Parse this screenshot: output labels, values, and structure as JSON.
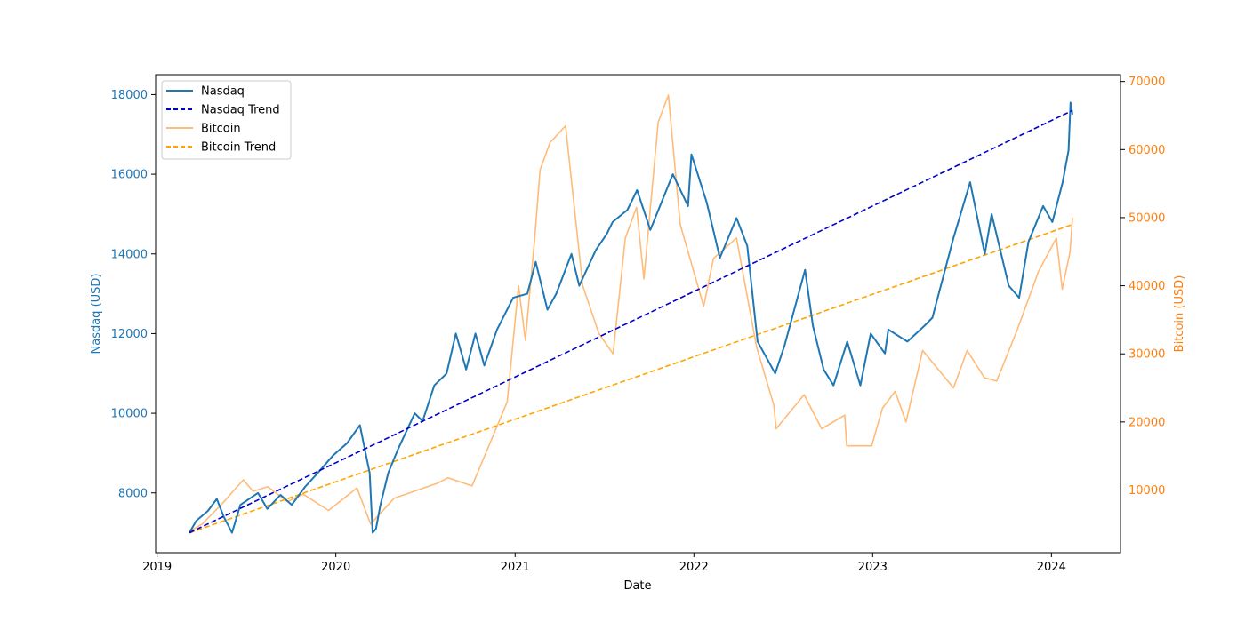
{
  "chart_data": {
    "type": "line",
    "xlabel": "Date",
    "ylabel_left": "Nasdaq (USD)",
    "ylabel_right": "Bitcoin (USD)",
    "x_ticks": [
      "2019",
      "2020",
      "2021",
      "2022",
      "2023",
      "2024"
    ],
    "x_range": [
      "2018-12-29",
      "2024-05-21"
    ],
    "y_left_ticks": [
      8000,
      10000,
      12000,
      14000,
      16000,
      18000
    ],
    "y_left_range": [
      6500,
      18500
    ],
    "y_right_ticks": [
      10000,
      20000,
      30000,
      40000,
      50000,
      60000,
      70000
    ],
    "y_right_range": [
      800,
      71000
    ],
    "grid": false,
    "legend": {
      "position": "top-left",
      "items": [
        {
          "label": "Nasdaq",
          "color": "#1f77b4",
          "style": "solid"
        },
        {
          "label": "Nasdaq Trend",
          "color": "#0000cd",
          "style": "dashed"
        },
        {
          "label": "Bitcoin",
          "color": "#ffbb78",
          "style": "solid"
        },
        {
          "label": "Bitcoin Trend",
          "color": "#ffa500",
          "style": "dashed"
        }
      ]
    },
    "colors": {
      "left_axis": "#1f77b4",
      "right_axis": "#ff7f0e"
    },
    "series": [
      {
        "name": "Nasdaq",
        "axis": "left",
        "x": [
          "2019-03-08",
          "2019-03-22",
          "2019-04-15",
          "2019-05-03",
          "2019-05-17",
          "2019-06-03",
          "2019-06-20",
          "2019-07-26",
          "2019-08-14",
          "2019-09-10",
          "2019-10-03",
          "2019-10-30",
          "2019-11-25",
          "2019-12-27",
          "2020-01-24",
          "2020-02-19",
          "2020-03-10",
          "2020-03-16",
          "2020-03-23",
          "2020-04-01",
          "2020-04-17",
          "2020-05-07",
          "2020-06-10",
          "2020-06-26",
          "2020-07-20",
          "2020-08-14",
          "2020-09-02",
          "2020-09-23",
          "2020-10-12",
          "2020-10-30",
          "2020-11-25",
          "2020-12-28",
          "2021-01-26",
          "2021-02-12",
          "2021-03-08",
          "2021-03-26",
          "2021-04-26",
          "2021-05-12",
          "2021-06-15",
          "2021-07-07",
          "2021-07-19",
          "2021-08-18",
          "2021-09-07",
          "2021-10-04",
          "2021-11-19",
          "2021-12-20",
          "2021-12-27",
          "2022-01-27",
          "2022-02-23",
          "2022-03-29",
          "2022-04-20",
          "2022-05-11",
          "2022-06-16",
          "2022-07-05",
          "2022-08-16",
          "2022-09-01",
          "2022-09-23",
          "2022-10-13",
          "2022-11-10",
          "2022-12-07",
          "2022-12-28",
          "2023-01-26",
          "2023-02-02",
          "2023-03-13",
          "2023-04-17",
          "2023-05-03",
          "2023-06-15",
          "2023-07-19",
          "2023-08-18",
          "2023-09-01",
          "2023-10-06",
          "2023-10-27",
          "2023-11-15",
          "2023-12-15",
          "2024-01-03",
          "2024-01-24",
          "2024-02-05",
          "2024-02-09",
          "2024-02-13"
        ],
        "y": [
          7000,
          7300,
          7550,
          7850,
          7400,
          7000,
          7700,
          8000,
          7600,
          7950,
          7700,
          8150,
          8500,
          8950,
          9250,
          9700,
          8500,
          7000,
          7100,
          7700,
          8500,
          9100,
          10000,
          9800,
          10700,
          11000,
          12000,
          11100,
          12000,
          11200,
          12100,
          12900,
          13000,
          13800,
          12600,
          13000,
          14000,
          13200,
          14100,
          14500,
          14800,
          15100,
          15600,
          14600,
          16000,
          15200,
          16500,
          15300,
          13900,
          14900,
          14200,
          11800,
          11000,
          11700,
          13600,
          12200,
          11100,
          10700,
          11800,
          10700,
          12000,
          11500,
          12100,
          11800,
          12200,
          12400,
          14400,
          15800,
          14000,
          15000,
          13200,
          12900,
          14300,
          15200,
          14800,
          15800,
          16600,
          17800,
          17500
        ]
      },
      {
        "name": "Nasdaq Trend",
        "axis": "left",
        "x": [
          "2019-03-08",
          "2024-02-13"
        ],
        "y": [
          7000,
          17600
        ]
      },
      {
        "name": "Bitcoin",
        "axis": "right",
        "x": [
          "2019-03-08",
          "2019-04-03",
          "2019-05-14",
          "2019-06-26",
          "2019-07-16",
          "2019-08-15",
          "2019-09-24",
          "2019-10-26",
          "2019-12-17",
          "2020-02-13",
          "2020-03-12",
          "2020-04-29",
          "2020-07-27",
          "2020-08-17",
          "2020-10-05",
          "2020-11-20",
          "2020-12-16",
          "2021-01-08",
          "2021-01-22",
          "2021-02-10",
          "2021-02-21",
          "2021-03-13",
          "2021-04-14",
          "2021-05-19",
          "2021-06-21",
          "2021-07-20",
          "2021-08-14",
          "2021-09-06",
          "2021-09-21",
          "2021-10-20",
          "2021-11-10",
          "2021-12-04",
          "2022-01-21",
          "2022-02-10",
          "2022-03-29",
          "2022-05-09",
          "2022-06-13",
          "2022-06-18",
          "2022-08-14",
          "2022-09-19",
          "2022-11-05",
          "2022-11-09",
          "2022-12-30",
          "2023-01-21",
          "2023-02-16",
          "2023-03-10",
          "2023-04-13",
          "2023-06-15",
          "2023-07-13",
          "2023-08-17",
          "2023-09-11",
          "2023-10-23",
          "2023-12-05",
          "2024-01-11",
          "2024-01-23",
          "2024-02-08",
          "2024-02-13"
        ],
        "y": [
          3900,
          5000,
          8000,
          11500,
          9800,
          10500,
          8300,
          9400,
          7000,
          10300,
          5000,
          8800,
          11000,
          11800,
          10600,
          18500,
          23000,
          40000,
          32000,
          47000,
          57000,
          61000,
          63500,
          40000,
          33000,
          30000,
          47000,
          51500,
          41000,
          64000,
          68000,
          49000,
          37000,
          44000,
          47000,
          31000,
          22500,
          19000,
          24000,
          19000,
          21000,
          16500,
          16500,
          22000,
          24500,
          20000,
          30500,
          25000,
          30500,
          26500,
          26000,
          33500,
          42000,
          47000,
          39500,
          45000,
          50000
        ]
      },
      {
        "name": "Bitcoin Trend",
        "axis": "right",
        "x": [
          "2019-03-08",
          "2024-02-13"
        ],
        "y": [
          3700,
          49000
        ]
      }
    ]
  }
}
